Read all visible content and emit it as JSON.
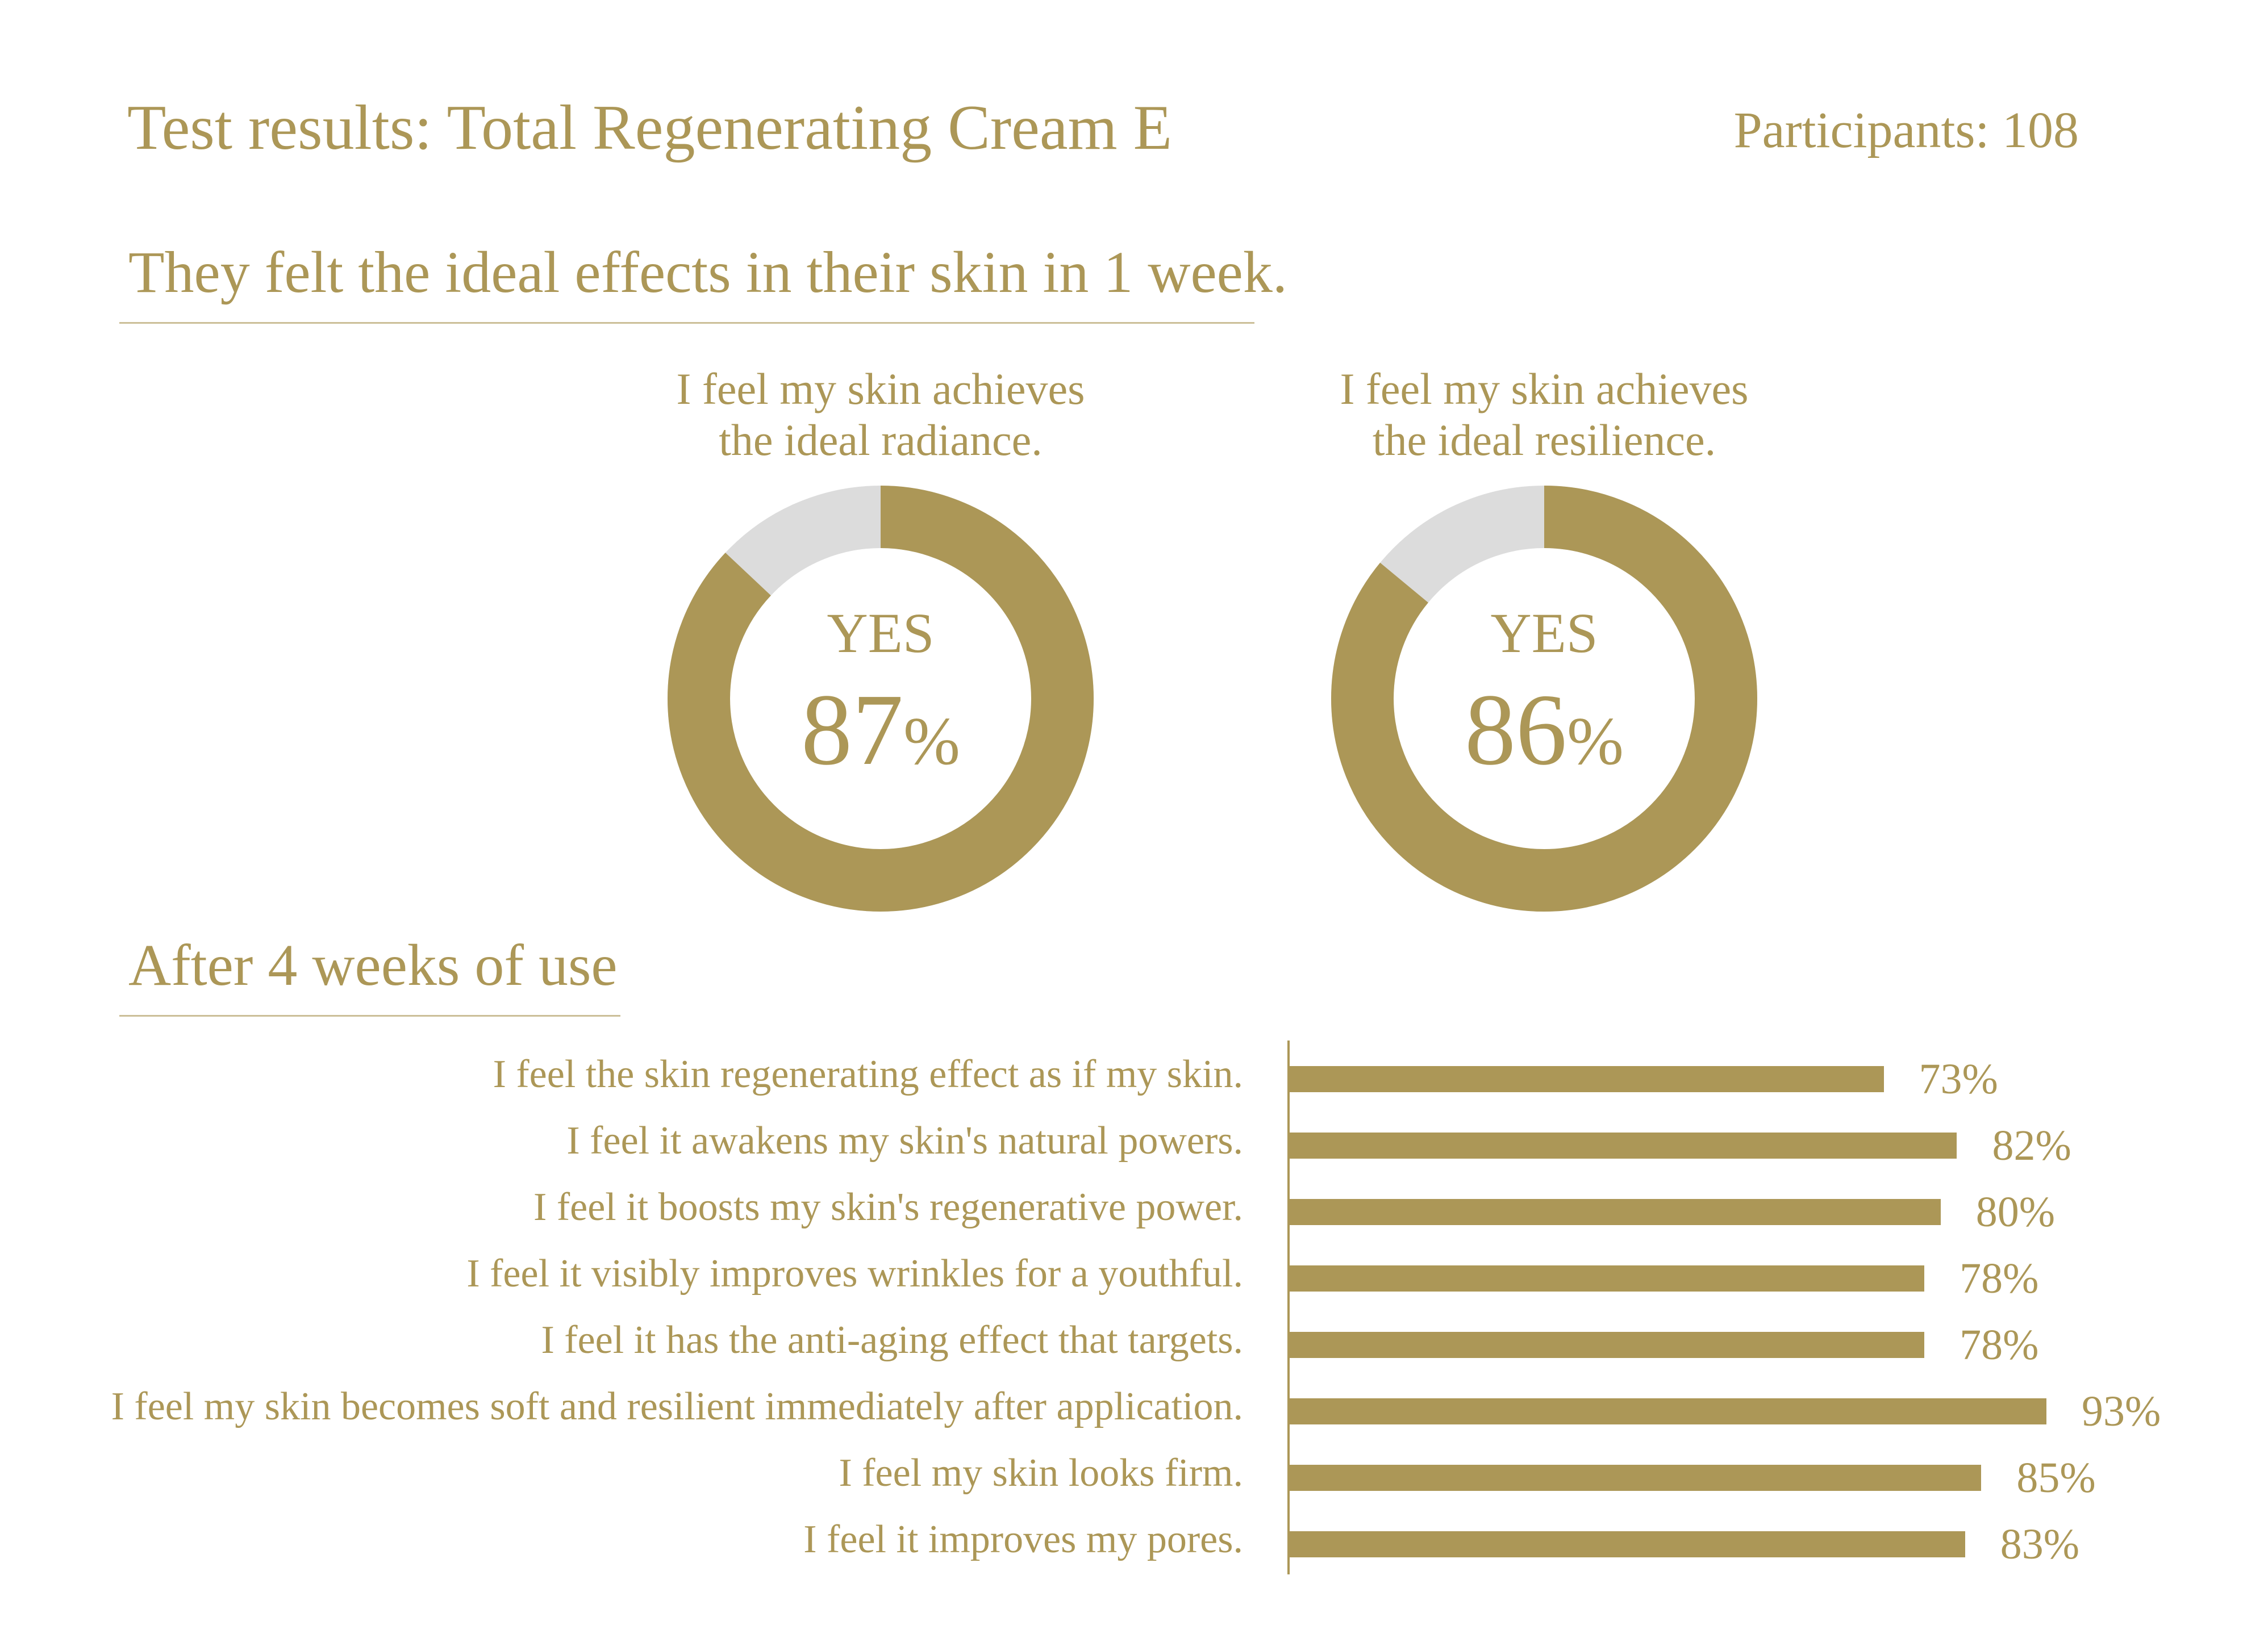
{
  "header": {
    "title": "Test results: Total Regenerating Cream E",
    "participants": "Participants: 108"
  },
  "section1": {
    "heading": "They felt the ideal effects in their skin in 1 week."
  },
  "section2": {
    "heading": "After 4 weeks of use"
  },
  "colors": {
    "accent": "#ac9757",
    "track": "#dcdcdc",
    "text": "#ac9757"
  },
  "chart_data": [
    {
      "type": "pie",
      "title": "I feel my skin achieves the ideal radiance.",
      "caption_lines": [
        "I feel my skin achieves",
        "the ideal radiance."
      ],
      "center_label": "YES",
      "value_text": "87",
      "unit": "%",
      "values": [
        87,
        13
      ],
      "categories": [
        "YES",
        ""
      ]
    },
    {
      "type": "pie",
      "title": "I feel my skin achieves the ideal resilience.",
      "caption_lines": [
        "I feel my skin achieves",
        "the ideal resilience."
      ],
      "center_label": "YES",
      "value_text": "86",
      "unit": "%",
      "values": [
        86,
        14
      ],
      "categories": [
        "YES",
        ""
      ]
    },
    {
      "type": "bar",
      "orientation": "horizontal",
      "categories": [
        "I feel the skin regenerating effect as if my skin.",
        "I feel it awakens my skin's natural powers.",
        "I feel it boosts my skin's regenerative power.",
        "I feel it visibly improves wrinkles for a youthful.",
        "I feel it has the anti-aging effect that targets.",
        "I feel my skin becomes soft and resilient immediately after application.",
        "I feel my skin looks firm.",
        "I feel it improves my pores."
      ],
      "values": [
        73,
        82,
        80,
        78,
        78,
        93,
        85,
        83
      ],
      "value_labels": [
        "73%",
        "82%",
        "80%",
        "78%",
        "78%",
        "93%",
        "85%",
        "83%"
      ],
      "unit": "%",
      "xlim": [
        0,
        100
      ]
    }
  ]
}
